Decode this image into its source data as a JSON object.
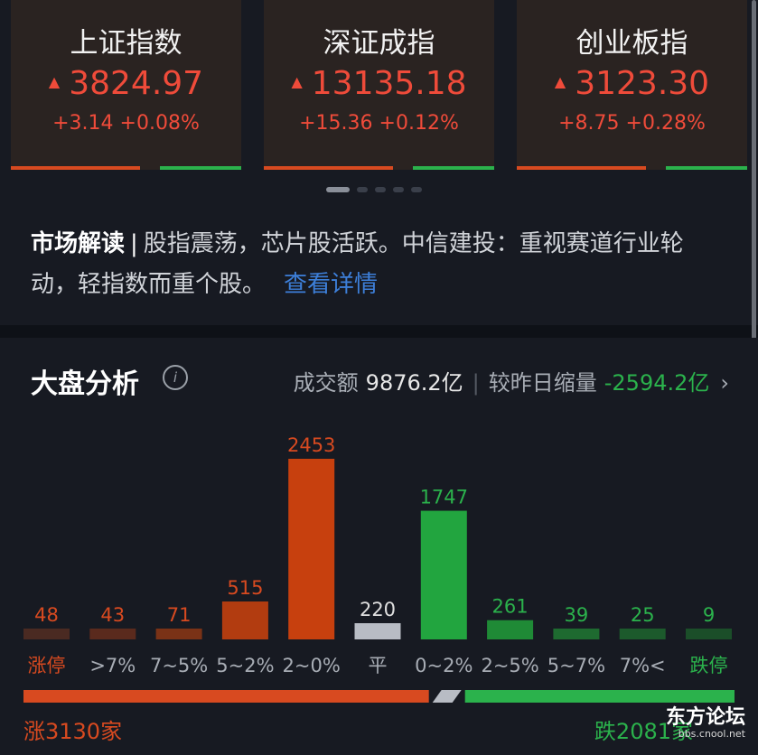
{
  "indices": [
    {
      "name": "上证指数",
      "price": "3824.97",
      "change": "+3.14 +0.08%"
    },
    {
      "name": "深证成指",
      "price": "13135.18",
      "change": "+15.36 +0.12%"
    },
    {
      "name": "创业板指",
      "price": "3123.30",
      "change": "+8.75 +0.28%"
    }
  ],
  "market": {
    "label": "市场解读",
    "sep": "|",
    "text": "股指震荡，芯片股活跃。中信建投：重视赛道行业轮动，轻指数而重个股。",
    "link": "查看详情"
  },
  "analysis": {
    "title": "大盘分析",
    "info_icon": "i",
    "turnover_label": "成交额",
    "turnover_value": "9876.2亿",
    "compare_label": "较昨日缩量",
    "compare_value": "-2594.2亿",
    "chevron": "›"
  },
  "chart_data": {
    "type": "bar",
    "categories": [
      "涨停",
      ">7%",
      "7~5%",
      "5~2%",
      "2~0%",
      "平",
      "0~2%",
      "2~5%",
      "5~7%",
      "7%<",
      "跌停"
    ],
    "values": [
      48,
      43,
      71,
      515,
      2453,
      220,
      1747,
      261,
      39,
      25,
      9
    ],
    "colors": [
      "#4a2a22",
      "#5a2a1d",
      "#7a3216",
      "#b23c10",
      "#c7400e",
      "#b8bcc4",
      "#22a53f",
      "#1f8a36",
      "#1e6a30",
      "#1c5a2c",
      "#1b4e29"
    ],
    "label_colors": [
      "#d84a20",
      "#d84a20",
      "#d84a20",
      "#d84a20",
      "#d84a20",
      "#e0e0e0",
      "#2bb24c",
      "#2bb24c",
      "#2bb24c",
      "#2bb24c",
      "#2bb24c"
    ],
    "xlabel_colors": [
      "#d84a20",
      "#a8adb5",
      "#a8adb5",
      "#a8adb5",
      "#a8adb5",
      "#a8adb5",
      "#a8adb5",
      "#a8adb5",
      "#a8adb5",
      "#a8adb5",
      "#2bb24c"
    ]
  },
  "summary": {
    "up_text": "涨3130家",
    "down_text": "跌2081家",
    "up_count": 3130,
    "down_count": 2081
  },
  "watermark": {
    "title": "东方论坛",
    "url": "bbs.cnool.net"
  }
}
